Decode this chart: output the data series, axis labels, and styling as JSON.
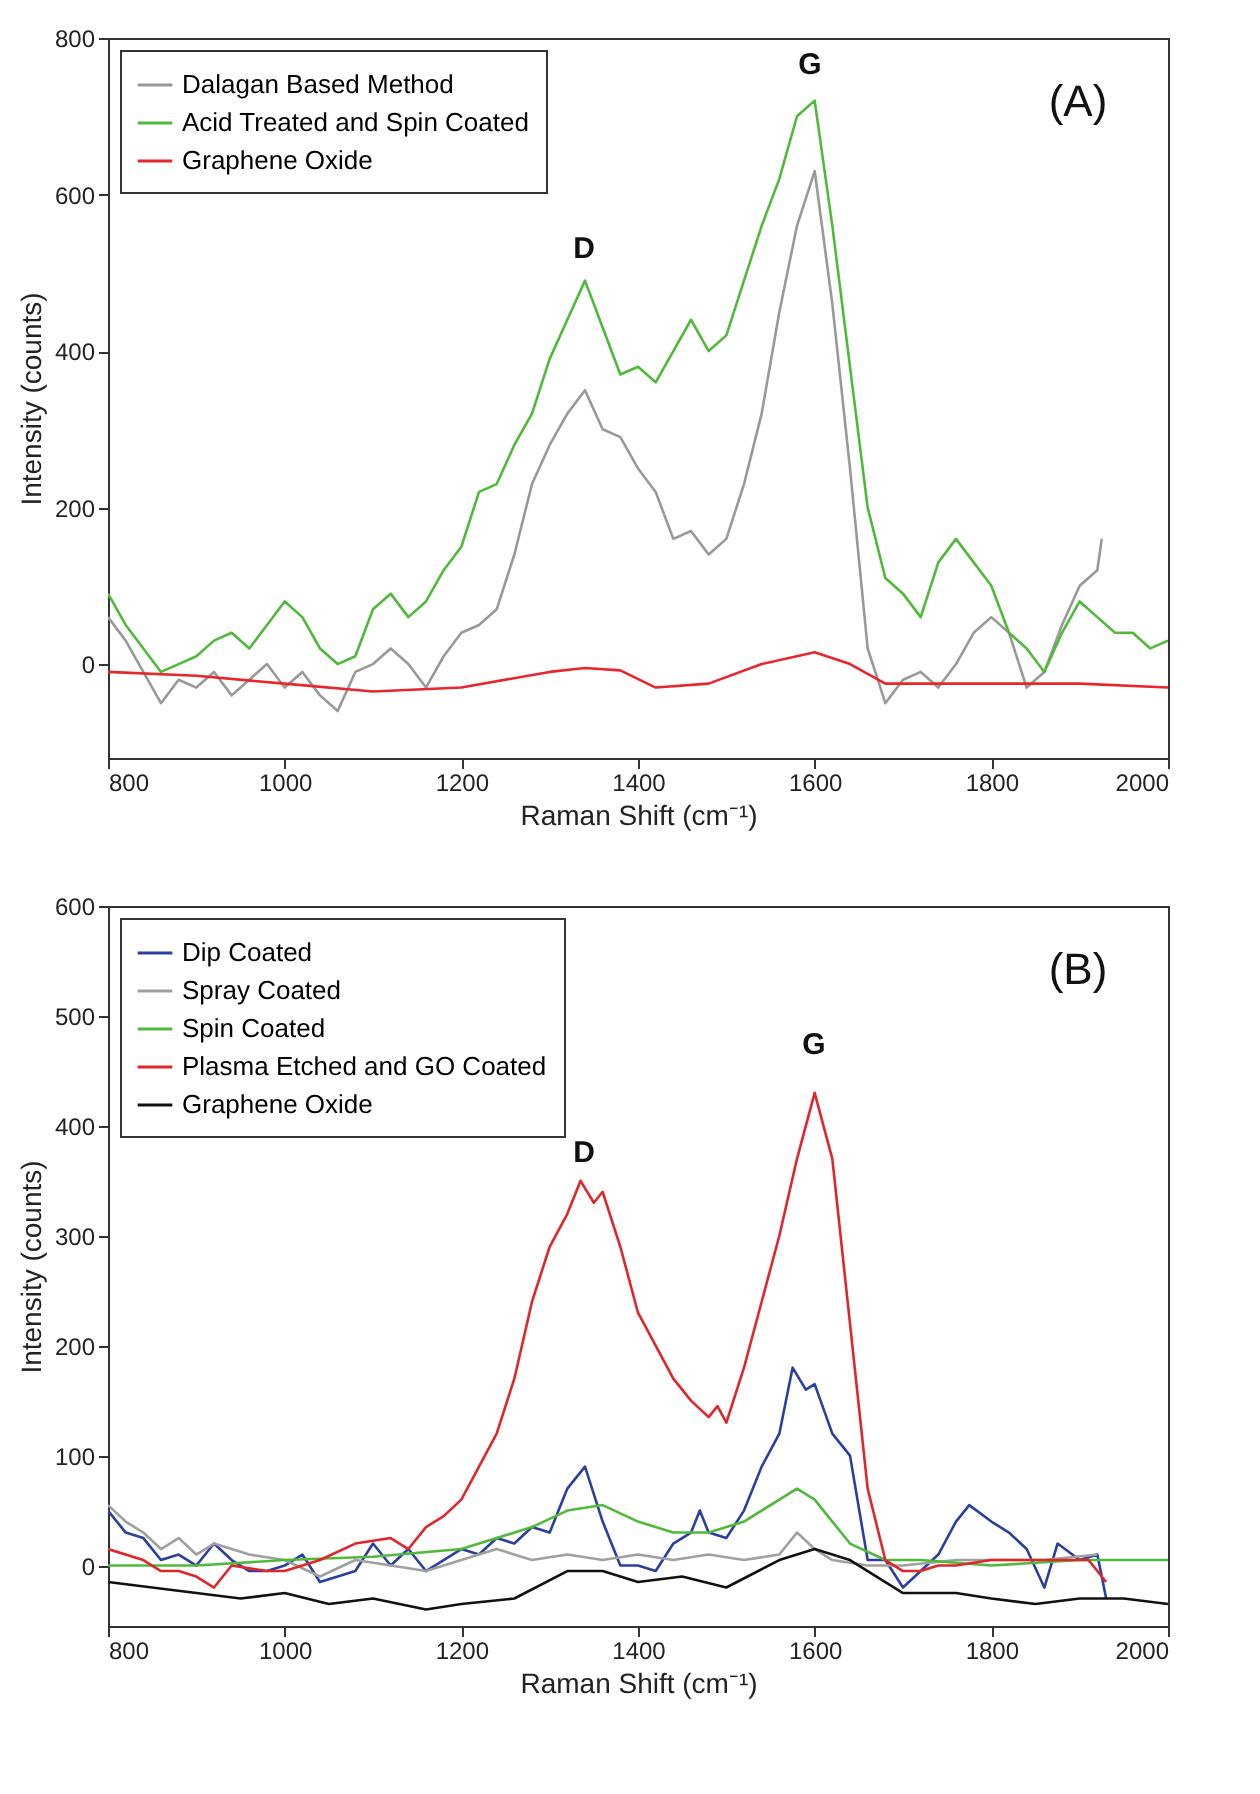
{
  "chart_data": [
    {
      "type": "line",
      "xlabel": "Raman Shift (cm⁻¹)",
      "ylabel": "Intensity (counts)",
      "xlim": [
        800,
        2000
      ],
      "ylim": [
        -120,
        800
      ],
      "xticks": [
        800,
        1000,
        1200,
        1400,
        1600,
        1800,
        2000
      ],
      "yticks": [
        0,
        200,
        400,
        600,
        800
      ],
      "legend": "top left",
      "grid": false,
      "annotations": [
        "D",
        "G",
        "(A)"
      ],
      "series": [
        {
          "name": "Dalagan Based Method",
          "color": "#999999",
          "x": [
            800,
            820,
            840,
            860,
            880,
            900,
            920,
            940,
            960,
            980,
            1000,
            1020,
            1040,
            1060,
            1080,
            1100,
            1120,
            1140,
            1160,
            1180,
            1200,
            1220,
            1240,
            1260,
            1280,
            1300,
            1320,
            1340,
            1360,
            1380,
            1400,
            1420,
            1440,
            1460,
            1480,
            1500,
            1520,
            1540,
            1560,
            1580,
            1600,
            1620,
            1640,
            1660,
            1680,
            1700,
            1720,
            1740,
            1760,
            1780,
            1800,
            1820,
            1840,
            1860,
            1880,
            1900,
            1920,
            1925
          ],
          "values": [
            60,
            30,
            -10,
            -50,
            -20,
            -30,
            -10,
            -40,
            -20,
            0,
            -30,
            -10,
            -40,
            -60,
            -10,
            0,
            20,
            0,
            -30,
            10,
            40,
            50,
            70,
            140,
            230,
            280,
            320,
            350,
            300,
            290,
            250,
            220,
            160,
            170,
            140,
            160,
            230,
            320,
            450,
            560,
            630,
            460,
            250,
            20,
            -50,
            -20,
            -10,
            -30,
            0,
            40,
            60,
            40,
            -30,
            -10,
            50,
            100,
            120,
            160
          ]
        },
        {
          "name": "Acid Treated and Spin Coated",
          "color": "#4fba3a",
          "x": [
            800,
            820,
            840,
            860,
            880,
            900,
            920,
            940,
            960,
            980,
            1000,
            1020,
            1040,
            1060,
            1080,
            1100,
            1120,
            1140,
            1160,
            1180,
            1200,
            1220,
            1240,
            1260,
            1280,
            1300,
            1320,
            1340,
            1360,
            1380,
            1400,
            1420,
            1440,
            1460,
            1480,
            1500,
            1520,
            1540,
            1560,
            1580,
            1600,
            1620,
            1640,
            1660,
            1680,
            1700,
            1720,
            1740,
            1760,
            1780,
            1800,
            1820,
            1840,
            1860,
            1880,
            1900,
            1920,
            1940,
            1960,
            1980,
            2000
          ],
          "values": [
            90,
            50,
            20,
            -10,
            0,
            10,
            30,
            40,
            20,
            50,
            80,
            60,
            20,
            0,
            10,
            70,
            90,
            60,
            80,
            120,
            150,
            220,
            230,
            280,
            320,
            390,
            440,
            490,
            430,
            370,
            380,
            360,
            400,
            440,
            400,
            420,
            490,
            560,
            620,
            700,
            720,
            560,
            380,
            200,
            110,
            90,
            60,
            130,
            160,
            130,
            100,
            40,
            20,
            -10,
            40,
            80,
            60,
            40,
            40,
            20,
            30
          ]
        },
        {
          "name": "Graphene Oxide",
          "color": "#e8262b",
          "x": [
            800,
            900,
            1000,
            1100,
            1200,
            1300,
            1340,
            1380,
            1420,
            1480,
            1540,
            1600,
            1640,
            1680,
            1800,
            1900,
            2000
          ],
          "values": [
            -10,
            -15,
            -25,
            -35,
            -30,
            -10,
            -5,
            -8,
            -30,
            -25,
            0,
            15,
            0,
            -25,
            -25,
            -25,
            -30
          ]
        }
      ]
    },
    {
      "type": "line",
      "xlabel": "Raman Shift (cm⁻¹)",
      "ylabel": "Intensity (counts)",
      "xlim": [
        800,
        2000
      ],
      "ylim": [
        -55,
        600
      ],
      "xticks": [
        800,
        1000,
        1200,
        1400,
        1600,
        1800,
        2000
      ],
      "yticks": [
        0,
        100,
        200,
        300,
        400,
        500,
        600
      ],
      "legend": "top left",
      "grid": false,
      "annotations": [
        "D",
        "G",
        "(B)"
      ],
      "series": [
        {
          "name": "Dip Coated",
          "color": "#2b3fa0",
          "x": [
            800,
            820,
            840,
            860,
            880,
            900,
            920,
            940,
            960,
            980,
            1000,
            1020,
            1040,
            1060,
            1080,
            1100,
            1120,
            1140,
            1160,
            1180,
            1200,
            1220,
            1240,
            1260,
            1280,
            1300,
            1320,
            1340,
            1360,
            1380,
            1400,
            1420,
            1440,
            1460,
            1470,
            1480,
            1500,
            1520,
            1540,
            1560,
            1575,
            1590,
            1600,
            1620,
            1640,
            1660,
            1680,
            1700,
            1720,
            1740,
            1760,
            1775,
            1800,
            1820,
            1840,
            1860,
            1875,
            1900,
            1920,
            1930
          ],
          "values": [
            50,
            30,
            25,
            5,
            10,
            0,
            20,
            5,
            -5,
            -5,
            0,
            10,
            -15,
            -10,
            -5,
            20,
            0,
            15,
            -5,
            5,
            15,
            10,
            25,
            20,
            35,
            30,
            70,
            90,
            40,
            0,
            0,
            -5,
            20,
            30,
            50,
            30,
            25,
            50,
            90,
            120,
            180,
            160,
            165,
            120,
            100,
            5,
            5,
            -20,
            -5,
            10,
            40,
            55,
            40,
            30,
            15,
            -20,
            20,
            5,
            10,
            -30
          ]
        },
        {
          "name": "Spray Coated",
          "color": "#a0a0a0",
          "x": [
            800,
            820,
            840,
            860,
            880,
            900,
            920,
            940,
            960,
            1000,
            1040,
            1080,
            1120,
            1160,
            1200,
            1240,
            1280,
            1320,
            1360,
            1400,
            1440,
            1480,
            1520,
            1560,
            1580,
            1600,
            1620,
            1660,
            1700,
            1760,
            1800,
            1860,
            1920
          ],
          "values": [
            55,
            40,
            30,
            15,
            25,
            10,
            20,
            15,
            10,
            5,
            -10,
            5,
            0,
            -5,
            5,
            15,
            5,
            10,
            5,
            10,
            5,
            10,
            5,
            10,
            30,
            15,
            5,
            0,
            0,
            5,
            5,
            5,
            10
          ]
        },
        {
          "name": "Spin Coated",
          "color": "#4fba3a",
          "x": [
            800,
            900,
            1000,
            1100,
            1200,
            1280,
            1320,
            1360,
            1400,
            1440,
            1480,
            1520,
            1560,
            1580,
            1600,
            1620,
            1640,
            1680,
            1720,
            1800,
            1900,
            2000
          ],
          "values": [
            0,
            0,
            5,
            8,
            15,
            35,
            50,
            55,
            40,
            30,
            30,
            40,
            60,
            70,
            60,
            40,
            20,
            5,
            5,
            0,
            5,
            5
          ]
        },
        {
          "name": "Plasma Etched and GO Coated",
          "color": "#e0262b",
          "x": [
            800,
            840,
            860,
            880,
            900,
            920,
            940,
            980,
            1000,
            1040,
            1080,
            1120,
            1140,
            1160,
            1180,
            1200,
            1220,
            1240,
            1260,
            1280,
            1300,
            1320,
            1335,
            1350,
            1360,
            1380,
            1400,
            1420,
            1440,
            1460,
            1480,
            1490,
            1500,
            1520,
            1540,
            1560,
            1580,
            1600,
            1620,
            1640,
            1660,
            1680,
            1700,
            1720,
            1740,
            1760,
            1800,
            1840,
            1880,
            1910,
            1930
          ],
          "values": [
            15,
            5,
            -5,
            -5,
            -10,
            -20,
            0,
            -5,
            -5,
            5,
            20,
            25,
            15,
            35,
            45,
            60,
            90,
            120,
            170,
            240,
            290,
            320,
            350,
            330,
            340,
            290,
            230,
            200,
            170,
            150,
            135,
            145,
            130,
            180,
            240,
            300,
            370,
            430,
            370,
            220,
            70,
            5,
            -5,
            -5,
            0,
            0,
            5,
            5,
            5,
            5,
            -15
          ]
        },
        {
          "name": "Graphene Oxide",
          "color": "#111111",
          "x": [
            800,
            850,
            900,
            950,
            1000,
            1050,
            1100,
            1160,
            1200,
            1260,
            1320,
            1360,
            1400,
            1450,
            1500,
            1560,
            1600,
            1640,
            1680,
            1700,
            1760,
            1800,
            1850,
            1900,
            1950,
            2000
          ],
          "values": [
            -15,
            -20,
            -25,
            -30,
            -25,
            -35,
            -30,
            -40,
            -35,
            -30,
            -5,
            -5,
            -15,
            -10,
            -20,
            5,
            15,
            5,
            -15,
            -25,
            -25,
            -30,
            -35,
            -30,
            -30,
            -35
          ]
        }
      ]
    }
  ]
}
